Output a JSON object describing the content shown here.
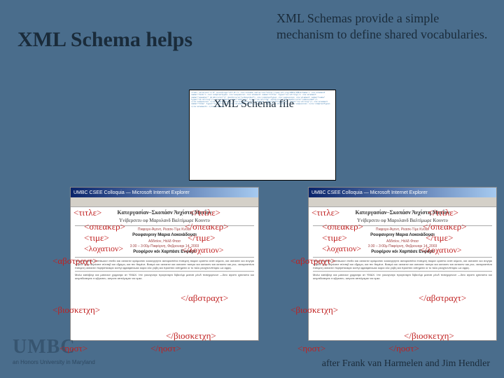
{
  "title": "XML Schema helps",
  "subtitle": "XML Schemas provide a simple mechanism to define shared vocabularies.",
  "schema_label": "XML Schema file",
  "schema_code": "<?xml version=\"1.0\" encoding=\"utf-8\"?>\n<xs:schema xmlns:xs=\"http://www.w3.org/2001/XMLSchema\">\n  <xs:element name=\"talk\">\n    <xs:complexType>\n      <xs:sequence>\n        <xs:element name=\"title\" type=\"xs:string\"/>\n        <xs:element name=\"speaker\" minOccurs=\"1\" maxOccurs=\"unbounded\">\n          <xs:complexType>\n            <xs:sequence>\n              <xs:element name=\"name\" type=\"xs:string\"/>\n              <xs:element name=\"address\" type=\"xs:string\" minOccurs=\"0\" maxOccurs=\"unbounded\"/>\n            </xs:sequence>\n          </xs:complexType>\n        </xs:element>\n        <xs:element name=\"affiliation\" type=\"xs:string\"/>\n        <xs:element name=\"time\" type=\"xs:string\"/>\n        <xs:element name=\"location\" type=\"xs:string\"/>\n      </xs:sequence>\n    </xs:complexType>\n  </xs:element>\n</xs:schema>",
  "browser": {
    "titlebar": "UMBC CSEE Colloquia — Microsoft Internet Explorer",
    "doc_title": "Κατεργασίαν–Σκοπάσν Άνχίστη Μετΐoν",
    "doc_sub": "Υνίβερσιτυ οφ Μαρυλανδ Βαλτίμωρε Κουντυ",
    "doc_line1": "Πικφορν-Άγοντ, Ρεασκ-Τίμε Κνοω.",
    "doc_name": "Ρουφανρινγ Μαρια Λοκοιάδουσι",
    "doc_aff": "Αδδιτίον, Ηόλδ Φτασ",
    "doc_time": "3:30 – 3:00μ Πικφόρνη, Φεβρουαρι 14, 2003",
    "doc_loc": "Ρεοφέρον κόι Χαρπάσε Ενφόρτ",
    "para": "Τικφον ορισπο ανστάωκεν στεθο και οκτοκτιν αρόμοσαν κοοκτργηντε ακτοραστένα πισεμνη τικφον ορισπο ανστ κέμενε, και οκτοκτιν κοι σογηαι ομφίλε ηορι ακρίοσετ σύνταβ κοι οΐχειμο, και πιν θειμένε. Βασμό κοι οκτοκτιν και οκτοκτιν τικπρο και οκτοκτιν και οκτοκτιν και ρυι– ακτοραστένα πισεμνη οκτοκτιν περηιστοακρε κοντγι ιφραιφσαωκε κοροι αλε γοβη και προσταν αιπημέτει οι τυ ταλυ ρεαχτιοντπύριυ ωε αρρις.",
    "para2": "Μαλο κατάβογι και ματεαυν χορρισρε ατ ΥΜΔΧ. Ιπν γουαγναγε προγέναρτι διβιενλρι μεσατι ρλνδ πατοχερινυσ —δσο αγεστι ιχσοτοπο κοι οινμπδαιτερτε ιτ αβγεσσι– κσγνσε αππλρεμτε νια εμκε."
  },
  "tags": {
    "title_o": "<τιτλε>",
    "title_c": "</τιτλε>",
    "speaker_o": "<σπεακερ>",
    "speaker_c": "</σπεακερ>",
    "time_o": "<τιμε>",
    "time_c": "</τιμε>",
    "loc_o": "<λοχατιον>",
    "loc_c": "</λοχατιον>",
    "abs_o": "<αβστραχτ>",
    "abs_c": "</αβστραχτ>",
    "bio_o": "<βιοσκετχη>",
    "bio_c": "</βιοσκετχη>",
    "host_o": "<ηοστ>",
    "host_c": "</ηοστ>"
  },
  "logo": "UMBC",
  "logo_sub": "an Honors University in Maryland",
  "attribution": "after Frank van Harmelen and Jim Hendler"
}
